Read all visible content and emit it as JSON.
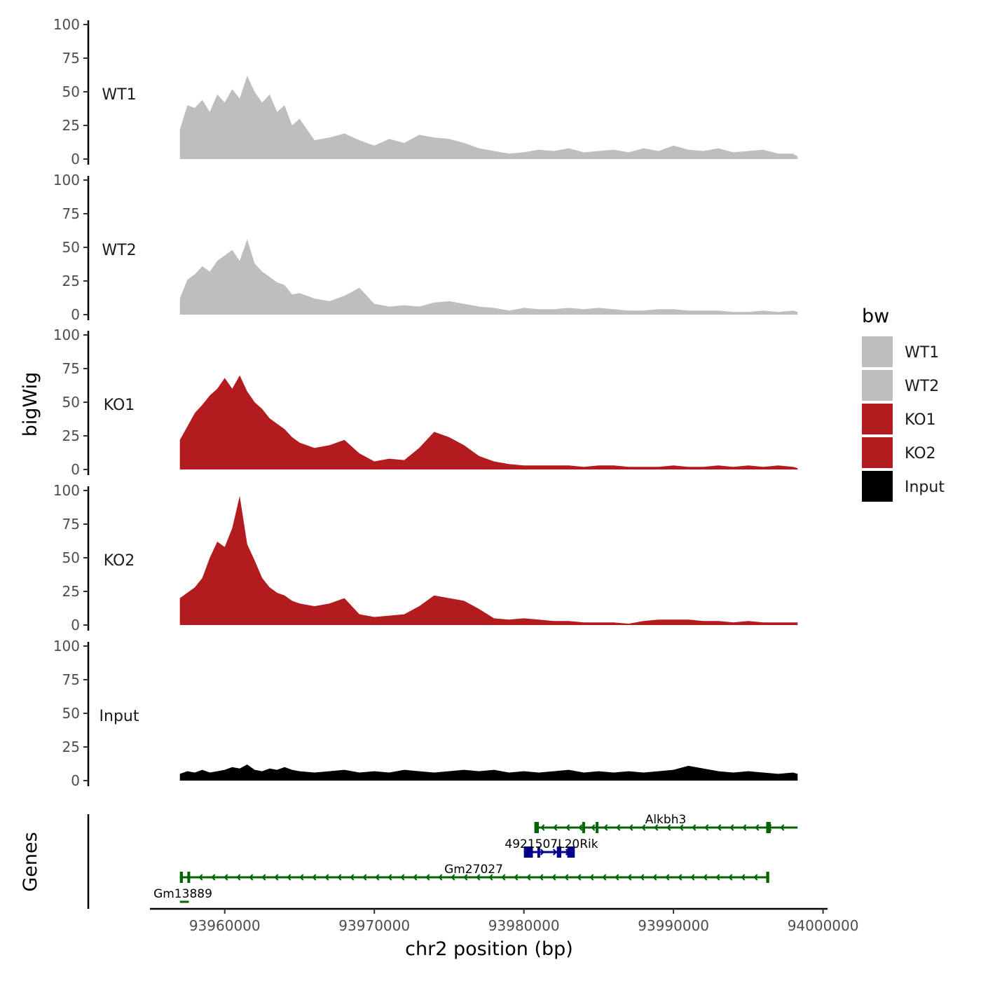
{
  "chart_data": {
    "type": "area",
    "ylabel": "bigWig",
    "xlabel": "chr2 position (bp)",
    "xlim": [
      93955000,
      94000300
    ],
    "ylim": [
      0,
      100
    ],
    "y_ticks": [
      0,
      25,
      50,
      75,
      100
    ],
    "x_ticks": [
      93960000,
      93970000,
      93980000,
      93990000,
      94000000
    ],
    "x_tick_labels": [
      "93960000",
      "93970000",
      "93980000",
      "93990000",
      "94000000"
    ],
    "legend": {
      "title": "bw",
      "position": "right",
      "entries": [
        {
          "label": "WT1",
          "color": "#bebebe"
        },
        {
          "label": "WT2",
          "color": "#bebebe"
        },
        {
          "label": "KO1",
          "color": "#b21c1f"
        },
        {
          "label": "KO2",
          "color": "#b21c1f"
        },
        {
          "label": "Input",
          "color": "#000000"
        }
      ]
    },
    "series": [
      {
        "name": "WT1",
        "color": "#bebebe",
        "x": [
          93957000,
          93957500,
          93958000,
          93958500,
          93959000,
          93959500,
          93960000,
          93960500,
          93961000,
          93961500,
          93962000,
          93962500,
          93963000,
          93963500,
          93964000,
          93964500,
          93965000,
          93966000,
          93967000,
          93968000,
          93969000,
          93970000,
          93971000,
          93972000,
          93973000,
          93974000,
          93975000,
          93976000,
          93977000,
          93978000,
          93979000,
          93980000,
          93981000,
          93982000,
          93983000,
          93984000,
          93985000,
          93986000,
          93987000,
          93988000,
          93989000,
          93990000,
          93991000,
          93992000,
          93993000,
          93994000,
          93995000,
          93996000,
          93997000,
          93998000,
          93998300
        ],
        "values": [
          22,
          40,
          38,
          44,
          35,
          48,
          42,
          52,
          45,
          62,
          50,
          42,
          48,
          35,
          40,
          25,
          30,
          14,
          16,
          19,
          14,
          10,
          15,
          12,
          18,
          16,
          15,
          12,
          8,
          6,
          4,
          5,
          7,
          6,
          8,
          5,
          6,
          7,
          5,
          8,
          6,
          10,
          7,
          6,
          8,
          5,
          6,
          7,
          4,
          4,
          2
        ]
      },
      {
        "name": "WT2",
        "color": "#bebebe",
        "x": [
          93957000,
          93957500,
          93958000,
          93958500,
          93959000,
          93959500,
          93960000,
          93960500,
          93961000,
          93961500,
          93962000,
          93962500,
          93963000,
          93963500,
          93964000,
          93964500,
          93965000,
          93966000,
          93967000,
          93968000,
          93969000,
          93970000,
          93971000,
          93972000,
          93973000,
          93974000,
          93975000,
          93976000,
          93977000,
          93978000,
          93979000,
          93980000,
          93981000,
          93982000,
          93983000,
          93984000,
          93985000,
          93986000,
          93987000,
          93988000,
          93989000,
          93990000,
          93991000,
          93992000,
          93993000,
          93994000,
          93995000,
          93996000,
          93997000,
          93998000,
          93998300
        ],
        "values": [
          12,
          26,
          30,
          36,
          32,
          40,
          44,
          48,
          40,
          56,
          38,
          32,
          28,
          24,
          22,
          15,
          16,
          12,
          10,
          14,
          20,
          8,
          6,
          7,
          6,
          9,
          10,
          8,
          6,
          5,
          3,
          5,
          4,
          4,
          5,
          4,
          5,
          4,
          3,
          3,
          4,
          4,
          3,
          3,
          3,
          2,
          2,
          3,
          2,
          3,
          2
        ]
      },
      {
        "name": "KO1",
        "color": "#b21c1f",
        "x": [
          93957000,
          93957500,
          93958000,
          93958500,
          93959000,
          93959500,
          93960000,
          93960500,
          93961000,
          93961500,
          93962000,
          93962500,
          93963000,
          93963500,
          93964000,
          93964500,
          93965000,
          93966000,
          93967000,
          93968000,
          93969000,
          93970000,
          93971000,
          93972000,
          93973000,
          93974000,
          93975000,
          93976000,
          93977000,
          93978000,
          93979000,
          93980000,
          93981000,
          93982000,
          93983000,
          93984000,
          93985000,
          93986000,
          93987000,
          93988000,
          93989000,
          93990000,
          93991000,
          93992000,
          93993000,
          93994000,
          93995000,
          93996000,
          93997000,
          93998000,
          93998300
        ],
        "values": [
          22,
          32,
          42,
          48,
          55,
          60,
          68,
          60,
          70,
          58,
          50,
          45,
          38,
          34,
          30,
          24,
          20,
          16,
          18,
          22,
          12,
          6,
          8,
          7,
          16,
          28,
          24,
          18,
          10,
          6,
          4,
          3,
          3,
          3,
          3,
          2,
          3,
          3,
          2,
          2,
          2,
          3,
          2,
          2,
          3,
          2,
          3,
          2,
          3,
          2,
          1
        ]
      },
      {
        "name": "KO2",
        "color": "#b21c1f",
        "x": [
          93957000,
          93957500,
          93958000,
          93958500,
          93959000,
          93959500,
          93960000,
          93960500,
          93961000,
          93961500,
          93962000,
          93962500,
          93963000,
          93963500,
          93964000,
          93964500,
          93965000,
          93966000,
          93967000,
          93968000,
          93969000,
          93970000,
          93971000,
          93972000,
          93973000,
          93974000,
          93975000,
          93976000,
          93977000,
          93978000,
          93979000,
          93980000,
          93981000,
          93982000,
          93983000,
          93984000,
          93985000,
          93986000,
          93987000,
          93988000,
          93989000,
          93990000,
          93991000,
          93992000,
          93993000,
          93994000,
          93995000,
          93996000,
          93997000,
          93998000,
          93998300
        ],
        "values": [
          20,
          24,
          28,
          35,
          50,
          62,
          58,
          72,
          96,
          60,
          48,
          35,
          28,
          24,
          22,
          18,
          16,
          14,
          16,
          20,
          8,
          6,
          7,
          8,
          14,
          22,
          20,
          18,
          12,
          5,
          4,
          5,
          4,
          3,
          3,
          2,
          2,
          2,
          1,
          3,
          4,
          4,
          4,
          3,
          3,
          2,
          3,
          2,
          2,
          2,
          2
        ]
      },
      {
        "name": "Input",
        "color": "#000000",
        "x": [
          93957000,
          93957500,
          93958000,
          93958500,
          93959000,
          93959500,
          93960000,
          93960500,
          93961000,
          93961500,
          93962000,
          93962500,
          93963000,
          93963500,
          93964000,
          93964500,
          93965000,
          93966000,
          93967000,
          93968000,
          93969000,
          93970000,
          93971000,
          93972000,
          93973000,
          93974000,
          93975000,
          93976000,
          93977000,
          93978000,
          93979000,
          93980000,
          93981000,
          93982000,
          93983000,
          93984000,
          93985000,
          93986000,
          93987000,
          93988000,
          93989000,
          93990000,
          93991000,
          93992000,
          93993000,
          93994000,
          93995000,
          93996000,
          93997000,
          93998000,
          93998300
        ],
        "values": [
          5,
          7,
          6,
          8,
          6,
          7,
          8,
          10,
          9,
          12,
          8,
          7,
          9,
          8,
          10,
          8,
          7,
          6,
          7,
          8,
          6,
          7,
          6,
          8,
          7,
          6,
          7,
          8,
          7,
          8,
          6,
          7,
          6,
          7,
          8,
          6,
          7,
          6,
          7,
          6,
          7,
          8,
          11,
          9,
          7,
          6,
          7,
          6,
          5,
          6,
          5
        ]
      }
    ],
    "genes": [
      {
        "name": "Alkbh3",
        "start": 93980700,
        "end": 93998300,
        "strand": "-",
        "color": "#006400",
        "exons": [
          [
            93980700,
            93981000
          ],
          [
            93983900,
            93984000
          ],
          [
            93984800,
            93984900
          ],
          [
            93996200,
            93996500
          ]
        ]
      },
      {
        "name": "4921507L20Rik",
        "start": 93980000,
        "end": 93983400,
        "strand": "+",
        "color": "#00008b",
        "exons": [
          [
            93980000,
            93980600
          ],
          [
            93980900,
            93981000
          ],
          [
            93982200,
            93982500
          ],
          [
            93982900,
            93983400
          ]
        ]
      },
      {
        "name": "Gm27027",
        "start": 93957000,
        "end": 93996400,
        "strand": "-",
        "color": "#006400",
        "exons": [
          [
            93957000,
            93957200
          ],
          [
            93957500,
            93957600
          ],
          [
            93996200,
            93996400
          ]
        ]
      },
      {
        "name": "Gm13889",
        "start": 93957000,
        "end": 93957600,
        "strand": "-",
        "color": "#006400",
        "exons": []
      }
    ],
    "genes_label": "Genes"
  }
}
